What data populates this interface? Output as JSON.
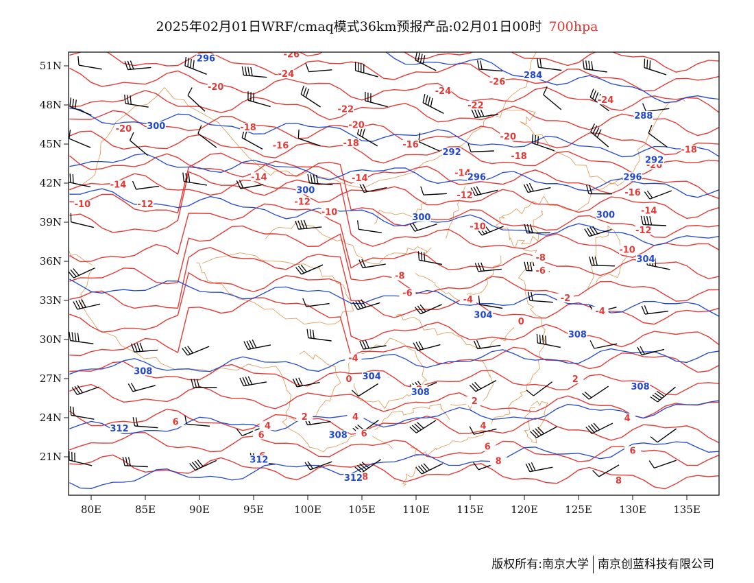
{
  "title": {
    "main": "2025年02月01日WRF/cmaq模式36km预报产品:02月01日00时",
    "level": "700hpa",
    "level_color": "#e8332f"
  },
  "map": {
    "projection": "lon-lat",
    "lon_range": [
      78,
      138
    ],
    "lat_range": [
      18.5,
      52.5
    ],
    "x_ticks": [
      "80E",
      "85E",
      "90E",
      "95E",
      "100E",
      "105E",
      "110E",
      "115E",
      "120E",
      "125E",
      "130E",
      "135E"
    ],
    "x_tick_values": [
      80,
      85,
      90,
      95,
      100,
      105,
      110,
      115,
      120,
      125,
      130,
      135
    ],
    "y_ticks": [
      "21N",
      "24N",
      "27N",
      "30N",
      "33N",
      "36N",
      "39N",
      "42N",
      "45N",
      "48N",
      "51N"
    ],
    "y_tick_values": [
      21,
      24,
      27,
      30,
      33,
      36,
      39,
      42,
      45,
      48,
      51
    ],
    "temperature_color": "#e23a36",
    "height_color": "#2146d0",
    "border_color": "#e0a060",
    "temperature_labels": [
      {
        "text": "-26",
        "lon": 98.5,
        "lat": 51.7
      },
      {
        "text": "-24",
        "lon": 98,
        "lat": 50.2
      },
      {
        "text": "-20",
        "lon": 91.5,
        "lat": 49.2
      },
      {
        "text": "-24",
        "lon": 112.5,
        "lat": 48.9
      },
      {
        "text": "-26",
        "lon": 117.5,
        "lat": 49.6
      },
      {
        "text": "-24",
        "lon": 127.5,
        "lat": 48.2
      },
      {
        "text": "-22",
        "lon": 103.5,
        "lat": 47.5
      },
      {
        "text": "-22",
        "lon": 115.5,
        "lat": 47.8
      },
      {
        "text": "-20",
        "lon": 83,
        "lat": 46.0
      },
      {
        "text": "-18",
        "lon": 94.5,
        "lat": 46.1
      },
      {
        "text": "-20",
        "lon": 104.5,
        "lat": 46.3
      },
      {
        "text": "-20",
        "lon": 118.5,
        "lat": 45.4
      },
      {
        "text": "-16",
        "lon": 97.5,
        "lat": 44.7
      },
      {
        "text": "-18",
        "lon": 104,
        "lat": 44.9
      },
      {
        "text": "-16",
        "lon": 109.5,
        "lat": 44.8
      },
      {
        "text": "-18",
        "lon": 119.5,
        "lat": 43.9
      },
      {
        "text": "-20",
        "lon": 132,
        "lat": 43.2
      },
      {
        "text": "-18",
        "lon": 135.2,
        "lat": 44.4
      },
      {
        "text": "-14",
        "lon": 82.5,
        "lat": 41.7
      },
      {
        "text": "-14",
        "lon": 95.5,
        "lat": 42.3
      },
      {
        "text": "-14",
        "lon": 104.8,
        "lat": 42.2
      },
      {
        "text": "-14",
        "lon": 114.3,
        "lat": 42.6
      },
      {
        "text": "-10",
        "lon": 79.2,
        "lat": 40.2
      },
      {
        "text": "-12",
        "lon": 85,
        "lat": 40.2
      },
      {
        "text": "-12",
        "lon": 99.5,
        "lat": 40.4
      },
      {
        "text": "-12",
        "lon": 114.5,
        "lat": 40.9
      },
      {
        "text": "-16",
        "lon": 130,
        "lat": 41.1
      },
      {
        "text": "-10",
        "lon": 102,
        "lat": 39.6
      },
      {
        "text": "-14",
        "lon": 131.5,
        "lat": 39.7
      },
      {
        "text": "-10",
        "lon": 115.7,
        "lat": 38.5
      },
      {
        "text": "-12",
        "lon": 131,
        "lat": 38.2
      },
      {
        "text": "-10",
        "lon": 129.5,
        "lat": 36.7
      },
      {
        "text": "-8",
        "lon": 121.5,
        "lat": 36.1
      },
      {
        "text": "-6",
        "lon": 121.5,
        "lat": 35.1
      },
      {
        "text": "-8",
        "lon": 108.5,
        "lat": 34.7
      },
      {
        "text": "-6",
        "lon": 109.2,
        "lat": 33.4
      },
      {
        "text": "-4",
        "lon": 114.8,
        "lat": 32.9
      },
      {
        "text": "-2",
        "lon": 123.8,
        "lat": 33.0
      },
      {
        "text": "-4",
        "lon": 127,
        "lat": 32.0
      },
      {
        "text": "0",
        "lon": 119.7,
        "lat": 31.2
      },
      {
        "text": "-4",
        "lon": 104.2,
        "lat": 28.4
      },
      {
        "text": "0",
        "lon": 103.8,
        "lat": 26.8
      },
      {
        "text": "2",
        "lon": 110.3,
        "lat": 26.0
      },
      {
        "text": "2",
        "lon": 124.7,
        "lat": 26.8
      },
      {
        "text": "2",
        "lon": 115.4,
        "lat": 25.1
      },
      {
        "text": "2",
        "lon": 99.7,
        "lat": 23.9
      },
      {
        "text": "4",
        "lon": 104.4,
        "lat": 23.9
      },
      {
        "text": "4",
        "lon": 96.3,
        "lat": 23.2
      },
      {
        "text": "4",
        "lon": 116.2,
        "lat": 23.2
      },
      {
        "text": "4",
        "lon": 129.5,
        "lat": 23.8
      },
      {
        "text": "6",
        "lon": 87.8,
        "lat": 23.5
      },
      {
        "text": "6",
        "lon": 95.7,
        "lat": 22.5
      },
      {
        "text": "6",
        "lon": 105.2,
        "lat": 22.6
      },
      {
        "text": "6",
        "lon": 116.6,
        "lat": 21.6
      },
      {
        "text": "6",
        "lon": 130,
        "lat": 21.3
      },
      {
        "text": "6",
        "lon": 95.8,
        "lat": 20.9
      },
      {
        "text": "8",
        "lon": 117.6,
        "lat": 20.5
      },
      {
        "text": "8",
        "lon": 105.3,
        "lat": 19.3
      },
      {
        "text": "8",
        "lon": 128.7,
        "lat": 19.0
      }
    ],
    "height_labels": [
      {
        "text": "296",
        "lon": 90.6,
        "lat": 51.4
      },
      {
        "text": "284",
        "lon": 120.8,
        "lat": 50.1
      },
      {
        "text": "300",
        "lon": 86,
        "lat": 46.2
      },
      {
        "text": "288",
        "lon": 131,
        "lat": 47.0
      },
      {
        "text": "292",
        "lon": 113.3,
        "lat": 44.2
      },
      {
        "text": "292",
        "lon": 132,
        "lat": 43.6
      },
      {
        "text": "296",
        "lon": 115.6,
        "lat": 42.3
      },
      {
        "text": "296",
        "lon": 130,
        "lat": 42.3
      },
      {
        "text": "300",
        "lon": 99.8,
        "lat": 41.3
      },
      {
        "text": "300",
        "lon": 110.5,
        "lat": 39.2
      },
      {
        "text": "300",
        "lon": 127.5,
        "lat": 39.4
      },
      {
        "text": "304",
        "lon": 131.2,
        "lat": 36.0
      },
      {
        "text": "304",
        "lon": 116.2,
        "lat": 31.7
      },
      {
        "text": "308",
        "lon": 124.9,
        "lat": 30.2
      },
      {
        "text": "308",
        "lon": 84.8,
        "lat": 27.4
      },
      {
        "text": "304",
        "lon": 105.9,
        "lat": 27.0
      },
      {
        "text": "308",
        "lon": 110.4,
        "lat": 25.8
      },
      {
        "text": "308",
        "lon": 130.7,
        "lat": 26.2
      },
      {
        "text": "312",
        "lon": 82.6,
        "lat": 23.0
      },
      {
        "text": "308",
        "lon": 102.8,
        "lat": 22.5
      },
      {
        "text": "312",
        "lon": 95.5,
        "lat": 20.6
      },
      {
        "text": "312",
        "lon": 104.2,
        "lat": 19.2
      }
    ]
  },
  "footer": {
    "left": "版权所有:南京大学",
    "right": "南京创蓝科技有限公司"
  }
}
